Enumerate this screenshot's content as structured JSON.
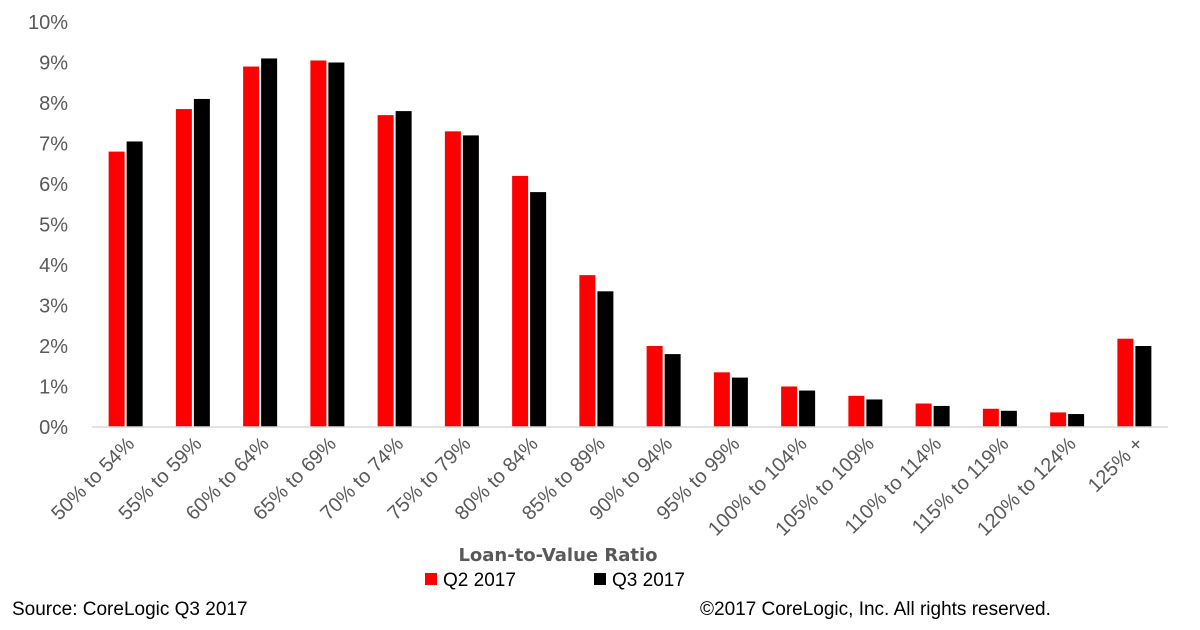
{
  "chart_data": {
    "type": "bar",
    "xlabel": "Loan-to-Value Ratio",
    "ylabel": "",
    "ylim": [
      0,
      10
    ],
    "yticks": [
      "0%",
      "1%",
      "2%",
      "3%",
      "4%",
      "5%",
      "6%",
      "7%",
      "8%",
      "9%",
      "10%"
    ],
    "categories": [
      "50% to 54%",
      "55% to 59%",
      "60% to 64%",
      "65% to 69%",
      "70% to 74%",
      "75% to 79%",
      "80% to 84%",
      "85% to 89%",
      "90% to 94%",
      "95% to 99%",
      "100% to 104%",
      "105% to 109%",
      "110% to 114%",
      "115% to 119%",
      "120% to 124%",
      "125% +"
    ],
    "series": [
      {
        "name": "Q2 2017",
        "color": "#ff0000",
        "values": [
          6.8,
          7.85,
          8.9,
          9.05,
          7.7,
          7.3,
          6.2,
          3.75,
          2.0,
          1.35,
          1.0,
          0.77,
          0.58,
          0.45,
          0.36,
          2.18
        ]
      },
      {
        "name": "Q3 2017",
        "color": "#000000",
        "values": [
          7.05,
          8.1,
          9.1,
          9.0,
          7.8,
          7.2,
          5.8,
          3.35,
          1.8,
          1.22,
          0.9,
          0.68,
          0.52,
          0.4,
          0.32,
          2.0
        ]
      }
    ],
    "grid": false,
    "legend": "bottom-center"
  },
  "footer": {
    "source": "Source: CoreLogic Q3 2017",
    "copyright": "©2017 CoreLogic, Inc. All rights reserved."
  }
}
